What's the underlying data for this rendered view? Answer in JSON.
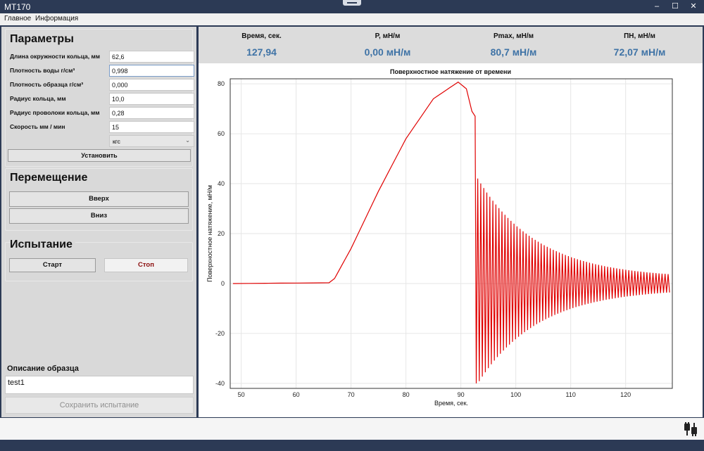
{
  "window": {
    "title": "MT170",
    "minimize": "–",
    "maximize": "☐",
    "close": "✕"
  },
  "menu": [
    "Главное",
    "Информация"
  ],
  "params": {
    "title": "Параметры",
    "rows": [
      {
        "label": "Длина окружности кольца, мм",
        "value": "62,6"
      },
      {
        "label": "Плотность воды г/см³",
        "value": "0,998"
      },
      {
        "label": "Плотность образца г/см³",
        "value": "0,000"
      },
      {
        "label": "Радиус кольца, мм",
        "value": "10,0"
      },
      {
        "label": "Радиус проволоки кольца, мм",
        "value": "0,28"
      },
      {
        "label": "Скорость мм / мин",
        "value": "15"
      }
    ],
    "unit_select": "кгс",
    "set_button": "Установить"
  },
  "movement": {
    "title": "Перемещение",
    "up": "Вверх",
    "down": "Вниз"
  },
  "test": {
    "title": "Испытание",
    "start": "Старт",
    "stop": "Стоп"
  },
  "description": {
    "label": "Описание образца",
    "value": "test1",
    "save": "Сохранить испытание"
  },
  "stats": [
    {
      "header": "Время, сек.",
      "value": "127,94"
    },
    {
      "header": "P, мН/м",
      "value": "0,00  мН/м"
    },
    {
      "header": "Pmax, мН/м",
      "value": "80,7  мН/м"
    },
    {
      "header": "ПН, мН/м",
      "value": "72,07  мН/м"
    }
  ],
  "colors": {
    "series": "#e00000",
    "value_text": "#3f73a6",
    "frame": "#2c3a55"
  },
  "status_icon": "plug-icon",
  "chart_data": {
    "type": "line",
    "title": "Поверхностное натяжение от времени",
    "xlabel": "Время, сек.",
    "ylabel": "Поверхностное натяжение, мН/м",
    "xlim": [
      48,
      128.5
    ],
    "ylim": [
      -42,
      82
    ],
    "xticks": [
      50,
      60,
      70,
      80,
      90,
      100,
      110,
      120
    ],
    "yticks": [
      -40,
      -20,
      0,
      20,
      40,
      60,
      80
    ],
    "grid": true,
    "series": [
      {
        "color": "#e00000",
        "description_points": [
          {
            "x": 48.5,
            "y": 0
          },
          {
            "x": 66,
            "y": 0.3
          },
          {
            "x": 67,
            "y": 2
          },
          {
            "x": 70,
            "y": 14
          },
          {
            "x": 75,
            "y": 37
          },
          {
            "x": 80,
            "y": 58
          },
          {
            "x": 85,
            "y": 74
          },
          {
            "x": 89.5,
            "y": 80.7
          },
          {
            "x": 91,
            "y": 78
          },
          {
            "x": 92,
            "y": 69
          },
          {
            "x": 92.6,
            "y": 67
          },
          {
            "x": 92.8,
            "y": -40
          },
          {
            "x": 127.9,
            "y": 0
          }
        ],
        "oscillation": {
          "start_x": 92.8,
          "end_x": 127.9,
          "initial_amplitude": 41,
          "final_amplitude": 2,
          "period": 0.55
        }
      }
    ]
  }
}
